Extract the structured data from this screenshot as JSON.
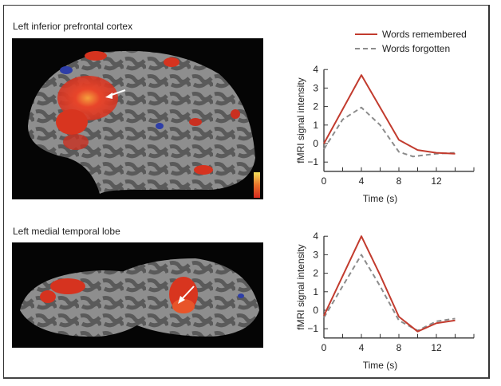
{
  "panels": [
    {
      "title": "Left inferior prefrontal cortex"
    },
    {
      "title": "Left medial temporal lobe"
    }
  ],
  "legend": [
    {
      "label": "Words remembered",
      "style": "solid",
      "color": "#c0392b"
    },
    {
      "label": "Words forgotten",
      "style": "dashed",
      "color": "#8c8c8c"
    }
  ],
  "colors": {
    "remembered": "#c23b2e",
    "forgotten": "#8c8c8c",
    "axis": "#333333"
  },
  "chart_data": [
    {
      "type": "line",
      "title": "Left inferior prefrontal cortex",
      "xlabel": "Time (s)",
      "ylabel": "fMRI signal intensity",
      "xlim": [
        0,
        16
      ],
      "ylim": [
        -1.5,
        4
      ],
      "xticks": [
        0,
        4,
        8,
        12
      ],
      "yticks": [
        4,
        3,
        2,
        1,
        0,
        -1
      ],
      "series": [
        {
          "name": "Words remembered",
          "x": [
            0,
            4,
            8,
            10,
            12,
            14
          ],
          "y": [
            0.0,
            3.7,
            0.2,
            -0.35,
            -0.5,
            -0.55
          ]
        },
        {
          "name": "Words forgotten",
          "x": [
            0,
            2,
            4,
            6,
            8,
            9.5,
            12,
            14
          ],
          "y": [
            -0.3,
            1.3,
            1.95,
            1.0,
            -0.45,
            -0.7,
            -0.55,
            -0.5
          ]
        }
      ]
    },
    {
      "type": "line",
      "title": "Left medial temporal lobe",
      "xlabel": "Time (s)",
      "ylabel": "fMRI signal intensity",
      "xlim": [
        0,
        16
      ],
      "ylim": [
        -1.5,
        4
      ],
      "xticks": [
        0,
        4,
        8,
        12
      ],
      "yticks": [
        4,
        3,
        2,
        1,
        0,
        -1
      ],
      "series": [
        {
          "name": "Words remembered",
          "x": [
            0,
            4,
            6,
            8,
            10,
            12,
            14
          ],
          "y": [
            -0.3,
            4.0,
            1.9,
            -0.35,
            -1.15,
            -0.7,
            -0.55
          ]
        },
        {
          "name": "Words forgotten",
          "x": [
            0,
            4,
            6,
            8,
            10,
            12,
            14
          ],
          "y": [
            -0.4,
            3.0,
            1.3,
            -0.55,
            -1.1,
            -0.6,
            -0.45
          ]
        }
      ]
    }
  ]
}
